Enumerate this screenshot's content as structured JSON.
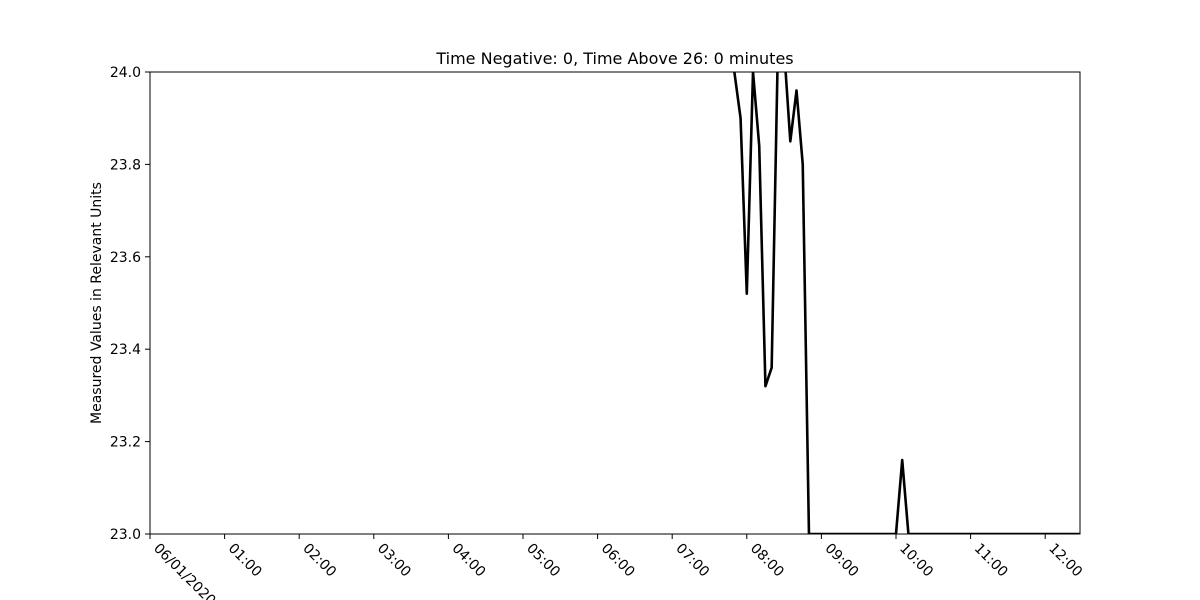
{
  "chart_data": {
    "type": "line",
    "title": "Time Negative: 0, Time Above 26: 0 minutes",
    "xlabel": "",
    "ylabel": "Measured Values in Relevant Units",
    "ylim": [
      23.0,
      24.0
    ],
    "xlim": [
      "06/01/2020 00:00",
      "06/01/2020 12:28"
    ],
    "yticks": [
      23.0,
      23.2,
      23.4,
      23.6,
      23.8,
      24.0
    ],
    "ytick_labels": [
      "23.0",
      "23.2",
      "23.4",
      "23.6",
      "23.8",
      "24.0"
    ],
    "xticks": [
      {
        "value": "06/01/2020 00:00",
        "label": "06/01/2020"
      },
      {
        "value": "06/01/2020 01:00",
        "label": "01:00"
      },
      {
        "value": "06/01/2020 02:00",
        "label": "02:00"
      },
      {
        "value": "06/01/2020 03:00",
        "label": "03:00"
      },
      {
        "value": "06/01/2020 04:00",
        "label": "04:00"
      },
      {
        "value": "06/01/2020 05:00",
        "label": "05:00"
      },
      {
        "value": "06/01/2020 06:00",
        "label": "06:00"
      },
      {
        "value": "06/01/2020 07:00",
        "label": "07:00"
      },
      {
        "value": "06/01/2020 08:00",
        "label": "08:00"
      },
      {
        "value": "06/01/2020 09:00",
        "label": "09:00"
      },
      {
        "value": "06/01/2020 10:00",
        "label": "10:00"
      },
      {
        "value": "06/01/2020 11:00",
        "label": "11:00"
      },
      {
        "value": "06/01/2020 12:00",
        "label": "12:00"
      }
    ],
    "grid": false,
    "line_color": "#000000",
    "series": [
      {
        "x": [
          "06/01/2020 07:45",
          "06/01/2020 07:50",
          "06/01/2020 07:55",
          "06/01/2020 08:00",
          "06/01/2020 08:05",
          "06/01/2020 08:10",
          "06/01/2020 08:15",
          "06/01/2020 08:20",
          "06/01/2020 08:25",
          "06/01/2020 08:30",
          "06/01/2020 08:35",
          "06/01/2020 08:40",
          "06/01/2020 08:45",
          "06/01/2020 08:50",
          "06/01/2020 08:55",
          "06/01/2020 09:00",
          "06/01/2020 09:30",
          "06/01/2020 10:00",
          "06/01/2020 10:05",
          "06/01/2020 10:10",
          "06/01/2020 10:30",
          "06/01/2020 11:00",
          "06/01/2020 11:30",
          "06/01/2020 12:00",
          "06/01/2020 12:28"
        ],
        "y": [
          24.2,
          24.0,
          23.9,
          23.52,
          24.0,
          23.84,
          23.32,
          23.36,
          24.05,
          24.05,
          23.85,
          23.96,
          23.8,
          23.0,
          23.0,
          23.0,
          23.0,
          23.0,
          23.16,
          23.0,
          23.0,
          23.0,
          23.0,
          23.0,
          23.0
        ]
      }
    ]
  }
}
